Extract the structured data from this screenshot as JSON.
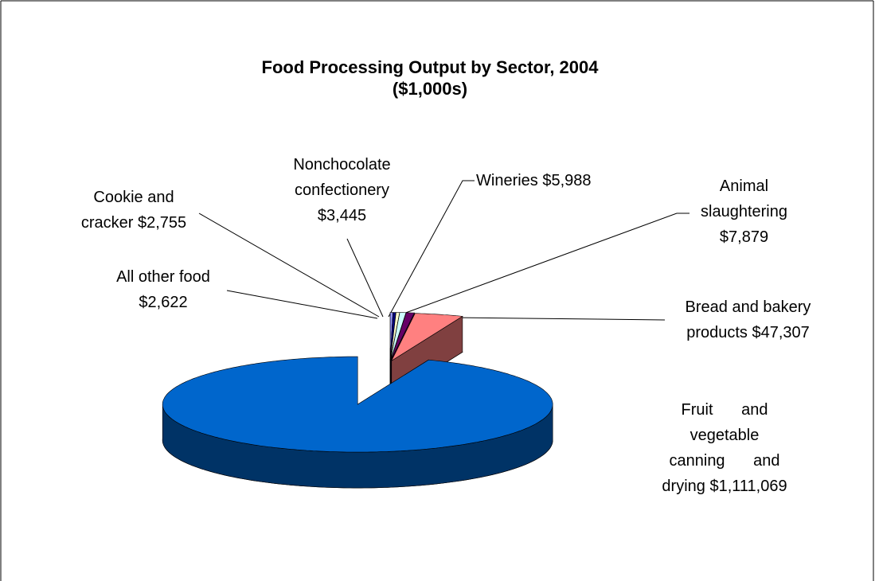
{
  "chart_data": {
    "type": "pie3d",
    "title": "Food Processing Output by Sector, 2004",
    "subtitle": "($1,000s)",
    "categories": [
      "All other food",
      "Cookie and cracker",
      "Nonchocolate confectionery",
      "Wineries",
      "Animal slaughtering",
      "Bread and bakery products",
      "Fruit and vegetable canning and drying"
    ],
    "values": [
      2622,
      2755,
      3445,
      5988,
      7879,
      47307,
      1111069
    ],
    "value_labels": [
      "$2,622",
      "$2,755",
      "$3,445",
      "$5,988",
      "$7,879",
      "$47,307",
      "$1,111,069"
    ],
    "colors": [
      "#9999ff",
      "#000080",
      "#ffffcc",
      "#ccffff",
      "#660066",
      "#ff8080",
      "#0066cc"
    ]
  }
}
